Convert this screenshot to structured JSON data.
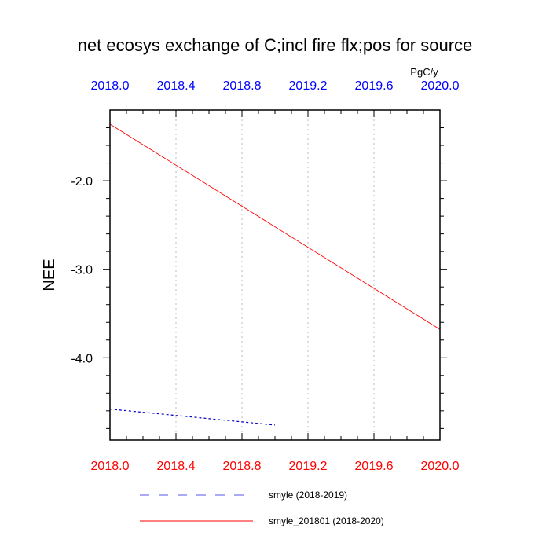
{
  "chart_data": {
    "type": "line",
    "title": "net ecosys exchange of C;incl fire flx;pos for source",
    "units": "PgC/y",
    "ylabel": "NEE",
    "xlabel": "",
    "xlim": [
      2018.0,
      2020.0
    ],
    "ylim": [
      -4.93,
      -1.2
    ],
    "x_ticks_top": [
      "2018.0",
      "2018.4",
      "2018.8",
      "2019.2",
      "2019.6",
      "2020.0"
    ],
    "x_ticks_bottom": [
      "2018.0",
      "2018.4",
      "2018.8",
      "2019.2",
      "2019.6",
      "2020.0"
    ],
    "x_tick_values": [
      2018.0,
      2018.4,
      2018.8,
      2019.2,
      2019.6,
      2020.0
    ],
    "y_ticks": [
      "-2.0",
      "-3.0",
      "-4.0"
    ],
    "y_tick_values": [
      -2.0,
      -3.0,
      -4.0
    ],
    "grid": "vertical dotted",
    "series": [
      {
        "name": "smyle (2018-2019)",
        "color": "#0000cc",
        "style": "dashed",
        "x": [
          2018.0,
          2019.0
        ],
        "y": [
          -4.58,
          -4.76
        ]
      },
      {
        "name": "smyle_201801 (2018-2020)",
        "color": "#ff0000",
        "style": "solid",
        "x": [
          2018.0,
          2020.0
        ],
        "y": [
          -1.36,
          -3.68
        ]
      }
    ],
    "legend_position": "bottom",
    "top_axis_color": "#0000ff",
    "bottom_axis_color": "#ff0000"
  }
}
